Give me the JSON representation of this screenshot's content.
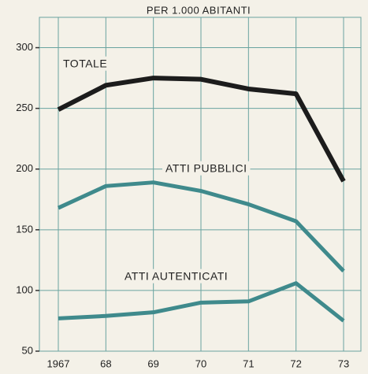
{
  "chart_data": {
    "type": "line",
    "title": "PER 1.000 ABITANTI",
    "categories": [
      "1967",
      "68",
      "69",
      "70",
      "71",
      "72",
      "73"
    ],
    "series": [
      {
        "name": "TOTALE",
        "color": "#1c1c1c",
        "values": [
          249,
          269,
          275,
          274,
          266,
          262,
          190
        ]
      },
      {
        "name": "ATTI PUBBLICI",
        "color": "#3f8a8c",
        "values": [
          168,
          186,
          189,
          182,
          171,
          157,
          116
        ]
      },
      {
        "name": "ATTI AUTENTICATI",
        "color": "#3f8a8c",
        "values": [
          77,
          79,
          82,
          90,
          91,
          106,
          75
        ]
      }
    ],
    "ylim": [
      50,
      325
    ],
    "yticks": [
      50,
      100,
      150,
      200,
      250,
      300
    ],
    "grid": true
  }
}
